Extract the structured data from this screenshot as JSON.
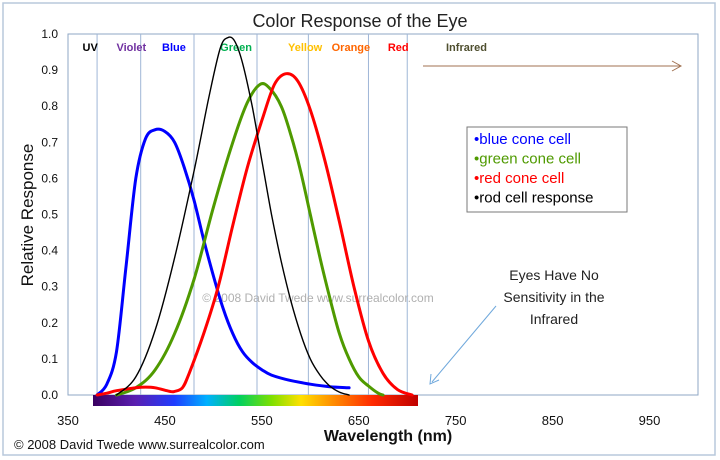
{
  "chart_data": {
    "type": "line",
    "title": "Color Response of the Eye",
    "xlabel": "Wavelength (nm)",
    "ylabel": "Relative Response",
    "xlim": [
      350,
      1000
    ],
    "ylim": [
      0,
      1.0
    ],
    "x_ticks": [
      350,
      450,
      550,
      650,
      750,
      850,
      950
    ],
    "y_ticks": [
      0.0,
      0.1,
      0.2,
      0.3,
      0.4,
      0.5,
      0.6,
      0.7,
      0.8,
      0.9,
      1.0
    ],
    "x_tick_labels": [
      "350",
      "450",
      "550",
      "650",
      "750",
      "850",
      "950"
    ],
    "y_tick_labels": [
      "0.0",
      "0.1",
      "0.2",
      "0.3",
      "0.4",
      "0.5",
      "0.6",
      "0.7",
      "0.8",
      "0.9",
      "1.0"
    ],
    "grid": false,
    "legend_position": "right",
    "bands": [
      {
        "label": "UV",
        "x_label": 365,
        "color": "#000000",
        "boundary": 380
      },
      {
        "label": "Violet",
        "x_label": 400,
        "color": "#7030a0",
        "boundary": 425
      },
      {
        "label": "Blue",
        "x_label": 447,
        "color": "#0000ff",
        "boundary": 480
      },
      {
        "label": "Green",
        "x_label": 507,
        "color": "#00b050",
        "boundary": 545
      },
      {
        "label": "Yellow",
        "x_label": 577,
        "color": "#ffc000",
        "boundary": 598
      },
      {
        "label": "Orange",
        "x_label": 622,
        "color": "#ff6600",
        "boundary": 660
      },
      {
        "label": "Red",
        "x_label": 680,
        "color": "#ff0000",
        "boundary": 700
      },
      {
        "label": "Infrared",
        "x_label": 740,
        "color": "#4f4f2f",
        "boundary": null
      }
    ],
    "series": [
      {
        "name": "blue cone cell",
        "color": "#0000ff",
        "points": [
          [
            380,
            0.0
          ],
          [
            390,
            0.03
          ],
          [
            400,
            0.12
          ],
          [
            410,
            0.36
          ],
          [
            420,
            0.6
          ],
          [
            430,
            0.71
          ],
          [
            440,
            0.735
          ],
          [
            450,
            0.73
          ],
          [
            460,
            0.7
          ],
          [
            470,
            0.63
          ],
          [
            480,
            0.54
          ],
          [
            490,
            0.43
          ],
          [
            500,
            0.33
          ],
          [
            510,
            0.24
          ],
          [
            520,
            0.17
          ],
          [
            530,
            0.12
          ],
          [
            540,
            0.09
          ],
          [
            550,
            0.07
          ],
          [
            560,
            0.055
          ],
          [
            580,
            0.04
          ],
          [
            600,
            0.03
          ],
          [
            620,
            0.023
          ],
          [
            640,
            0.02
          ]
        ]
      },
      {
        "name": "green cone cell",
        "color": "#4f9a00",
        "points": [
          [
            400,
            0.0
          ],
          [
            420,
            0.02
          ],
          [
            440,
            0.07
          ],
          [
            460,
            0.17
          ],
          [
            480,
            0.32
          ],
          [
            500,
            0.52
          ],
          [
            520,
            0.7
          ],
          [
            535,
            0.81
          ],
          [
            548,
            0.86
          ],
          [
            558,
            0.85
          ],
          [
            570,
            0.8
          ],
          [
            580,
            0.72
          ],
          [
            590,
            0.62
          ],
          [
            600,
            0.5
          ],
          [
            610,
            0.38
          ],
          [
            620,
            0.27
          ],
          [
            630,
            0.17
          ],
          [
            640,
            0.1
          ],
          [
            650,
            0.05
          ],
          [
            660,
            0.025
          ],
          [
            670,
            0.005
          ],
          [
            675,
            0.0
          ]
        ]
      },
      {
        "name": "red cone cell",
        "color": "#ff0000",
        "points": [
          [
            380,
            0.0
          ],
          [
            390,
            0.005
          ],
          [
            400,
            0.012
          ],
          [
            420,
            0.02
          ],
          [
            430,
            0.022
          ],
          [
            440,
            0.02
          ],
          [
            455,
            0.01
          ],
          [
            460,
            0.01
          ],
          [
            468,
            0.02
          ],
          [
            475,
            0.06
          ],
          [
            490,
            0.17
          ],
          [
            505,
            0.3
          ],
          [
            520,
            0.47
          ],
          [
            535,
            0.63
          ],
          [
            550,
            0.76
          ],
          [
            563,
            0.86
          ],
          [
            575,
            0.89
          ],
          [
            587,
            0.87
          ],
          [
            600,
            0.79
          ],
          [
            615,
            0.65
          ],
          [
            630,
            0.48
          ],
          [
            645,
            0.3
          ],
          [
            660,
            0.15
          ],
          [
            675,
            0.06
          ],
          [
            690,
            0.015
          ],
          [
            705,
            0.0
          ]
        ]
      },
      {
        "name": "rod cell response",
        "color": "#000000",
        "points": [
          [
            400,
            0.0
          ],
          [
            420,
            0.05
          ],
          [
            440,
            0.18
          ],
          [
            460,
            0.38
          ],
          [
            480,
            0.62
          ],
          [
            495,
            0.82
          ],
          [
            507,
            0.96
          ],
          [
            515,
            0.99
          ],
          [
            522,
            0.98
          ],
          [
            530,
            0.92
          ],
          [
            540,
            0.8
          ],
          [
            550,
            0.65
          ],
          [
            560,
            0.5
          ],
          [
            570,
            0.37
          ],
          [
            580,
            0.26
          ],
          [
            590,
            0.17
          ],
          [
            600,
            0.1
          ],
          [
            610,
            0.055
          ],
          [
            620,
            0.025
          ],
          [
            630,
            0.008
          ],
          [
            640,
            0.0
          ]
        ]
      }
    ]
  },
  "legend": {
    "bullet": "•",
    "items": [
      {
        "label": "blue cone cell",
        "color": "#0000ff"
      },
      {
        "label": "green cone cell",
        "color": "#4f9a00"
      },
      {
        "label": "red cone cell",
        "color": "#ff0000"
      },
      {
        "label": "rod cell response",
        "color": "#000000"
      }
    ]
  },
  "annotation": {
    "lines": [
      "Eyes Have No",
      "Sensitivity in the",
      "Infrared"
    ],
    "arrow_color": "#6fa8dc"
  },
  "watermark": "© 2008 David Twede   www.surrealcolor.com",
  "footer_credit": "© 2008 David Twede    www.surrealcolor.com",
  "colors": {
    "frame": "#7f9cc0",
    "infrared_arrow": "#a07050",
    "band_line": "#9fb6d6"
  }
}
